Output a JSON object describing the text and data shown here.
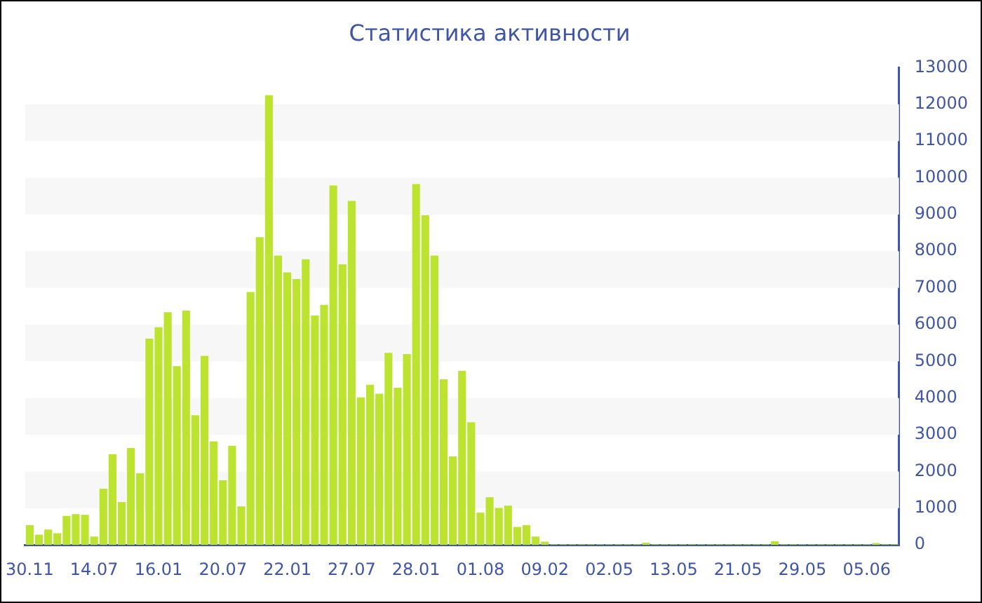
{
  "chart_data": {
    "type": "bar",
    "title": "Статистика активности",
    "categories": [
      "30.11",
      null,
      null,
      null,
      null,
      null,
      null,
      "14.07",
      null,
      null,
      null,
      null,
      null,
      null,
      "16.01",
      null,
      null,
      null,
      null,
      null,
      null,
      "20.07",
      null,
      null,
      null,
      null,
      null,
      null,
      "22.01",
      null,
      null,
      null,
      null,
      null,
      null,
      "27.07",
      null,
      null,
      null,
      null,
      null,
      null,
      "28.01",
      null,
      null,
      null,
      null,
      null,
      null,
      "01.08",
      null,
      null,
      null,
      null,
      null,
      null,
      "09.02",
      null,
      null,
      null,
      null,
      null,
      null,
      "02.05",
      null,
      null,
      null,
      null,
      null,
      null,
      "13.05",
      null,
      null,
      null,
      null,
      null,
      null,
      "21.05",
      null,
      null,
      null,
      null,
      null,
      null,
      "29.05",
      null,
      null,
      null,
      null,
      null,
      null,
      "05.06",
      null,
      null,
      null
    ],
    "values": [
      540,
      280,
      420,
      320,
      790,
      840,
      820,
      230,
      1530,
      2470,
      1170,
      2640,
      1950,
      5620,
      5930,
      6340,
      4870,
      6380,
      3530,
      5150,
      2820,
      1760,
      2700,
      1050,
      6890,
      8380,
      12250,
      7880,
      7420,
      7240,
      7780,
      6250,
      6540,
      9790,
      7640,
      9370,
      4020,
      4360,
      4120,
      5230,
      4280,
      5200,
      9830,
      8980,
      7880,
      4510,
      2410,
      4740,
      3340,
      880,
      1300,
      1010,
      1070,
      490,
      540,
      230,
      90,
      20,
      20,
      20,
      20,
      20,
      20,
      20,
      20,
      20,
      20,
      60,
      20,
      20,
      20,
      20,
      20,
      20,
      20,
      20,
      20,
      20,
      20,
      20,
      20,
      100,
      20,
      20,
      20,
      20,
      20,
      20,
      20,
      20,
      20,
      20,
      50,
      20,
      20
    ],
    "color": "#bce32f",
    "ylim": [
      0,
      13000
    ],
    "yticks": [
      0,
      1000,
      2000,
      3000,
      4000,
      5000,
      6000,
      7000,
      8000,
      9000,
      10000,
      11000,
      12000,
      13000
    ],
    "bands": [
      {
        "axis": "y",
        "from": 1000,
        "to": 2000,
        "color": "#f7f7f7"
      },
      {
        "axis": "y",
        "from": 3000,
        "to": 4000,
        "color": "#f7f7f7"
      },
      {
        "axis": "y",
        "from": 5000,
        "to": 6000,
        "color": "#f7f7f7"
      },
      {
        "axis": "y",
        "from": 7000,
        "to": 8000,
        "color": "#f7f7f7"
      },
      {
        "axis": "y",
        "from": 9000,
        "to": 10000,
        "color": "#f7f7f7"
      },
      {
        "axis": "y",
        "from": 11000,
        "to": 12000,
        "color": "#f7f7f7"
      }
    ]
  }
}
